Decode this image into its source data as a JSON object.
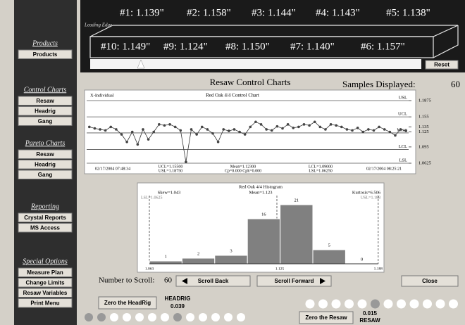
{
  "sidebar": {
    "sections": [
      {
        "heading": "Products",
        "buttons": [
          "Products"
        ]
      },
      {
        "heading": "Control Charts",
        "buttons": [
          "Resaw",
          "Headrig",
          "Gang"
        ]
      },
      {
        "heading": "Pareto Charts",
        "buttons": [
          "Resaw",
          "Headrig",
          "Gang"
        ]
      },
      {
        "heading": "Reporting",
        "buttons": [
          "Crystal Reports",
          "MS Access"
        ]
      },
      {
        "heading": "Special Options",
        "buttons": [
          "Measure Plan",
          "Change Limits",
          "Resaw Variables",
          "Print Menu"
        ]
      }
    ]
  },
  "measurements": {
    "leading_edge": "Leading Edge",
    "top": [
      "#1: 1.139\"",
      "#2: 1.158\"",
      "#3: 1.144\"",
      "#4: 1.143\"",
      "#5: 1.138\""
    ],
    "bottom": [
      "#10: 1.149\"",
      "#9: 1.124\"",
      "#8: 1.150\"",
      "#7: 1.140\"",
      "#6: 1.157\""
    ],
    "reset": "Reset"
  },
  "title": "Resaw Control Charts",
  "samples_label": "Samples Displayed:",
  "samples": 60,
  "control_chart": {
    "title": "Red Oak 4/4 Control Chart",
    "series_label": "X-Individual",
    "ylim": [
      1.0625,
      1.1875
    ],
    "yticks": [
      1.1875,
      1.155,
      1.135,
      1.125,
      1.095,
      1.0625
    ],
    "limits": [
      {
        "name": "USL",
        "value": 1.1875
      },
      {
        "name": "UCL",
        "value": 1.155
      },
      {
        "name": "Mean",
        "value": 1.123
      },
      {
        "name": "LCL",
        "value": 1.09
      },
      {
        "name": "LSL",
        "value": 1.0625
      }
    ],
    "values": [
      1.135,
      1.132,
      1.13,
      1.128,
      1.135,
      1.13,
      1.12,
      1.105,
      1.125,
      1.1,
      1.13,
      1.11,
      1.125,
      1.14,
      1.138,
      1.14,
      1.135,
      1.128,
      1.065,
      1.13,
      1.12,
      1.135,
      1.13,
      1.122,
      1.105,
      1.13,
      1.127,
      1.13,
      1.125,
      1.12,
      1.135,
      1.145,
      1.14,
      1.13,
      1.128,
      1.136,
      1.132,
      1.14,
      1.133,
      1.135,
      1.14,
      1.138,
      1.145,
      1.135,
      1.13,
      1.14,
      1.138,
      1.135,
      1.13,
      1.128,
      1.133,
      1.125,
      1.13,
      1.128,
      1.135,
      1.13,
      1.125,
      1.118,
      1.13,
      1.127
    ],
    "footer": [
      [
        "02/17/2004 07:48:34"
      ],
      [
        "UCL=1.15500",
        "USL=1.18750"
      ],
      [
        "Mean=1.12300",
        "Cp=0.000 Cpk=0.000"
      ],
      [
        "LCL=1.09000",
        "LSL=1.06250"
      ],
      [
        "02/17/2004 08:25:21"
      ]
    ]
  },
  "histogram": {
    "title": "Red Oak 4/4 Histogram",
    "stats": [
      "Skew=1.043",
      "Mean=1.123",
      "Kurtosis=6.506"
    ],
    "lsl_label": "LSL=1.0625",
    "usl_label": "USL=1.188",
    "counts": [
      1,
      2,
      3,
      16,
      21,
      5,
      0
    ],
    "xlabels": [
      "1.063",
      "1.125",
      "1.188"
    ]
  },
  "controls": {
    "scroll_label": "Number to Scroll:",
    "scroll_count": 60,
    "scroll_back": "Scroll Back",
    "scroll_forward": "Scroll Forward",
    "close": "Close"
  },
  "headrig": {
    "button": "Zero the HeadRig",
    "label": "HEADRIG",
    "value": 0.039
  },
  "resaw": {
    "button": "Zero the Resaw",
    "label": "RESAW",
    "value": 0.015
  }
}
